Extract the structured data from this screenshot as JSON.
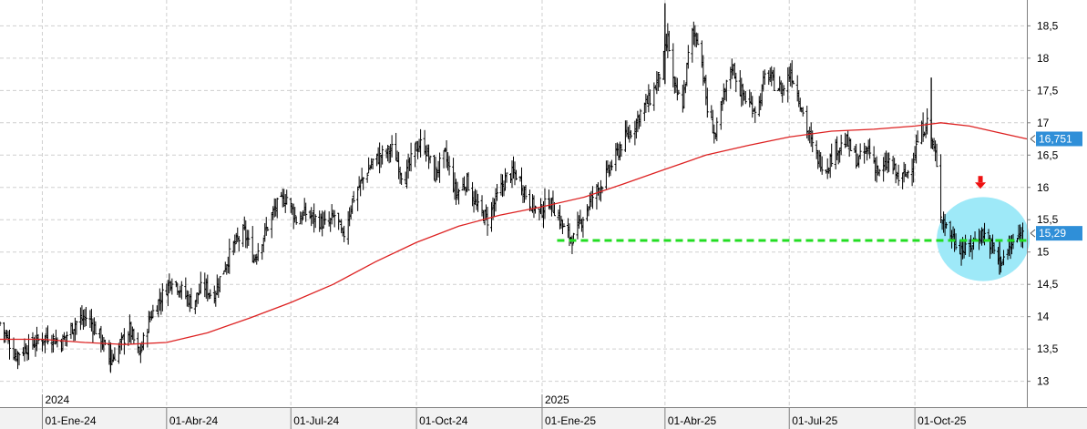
{
  "chart_data": {
    "type": "ohlc",
    "title": "",
    "xlabel": "",
    "ylabel": "",
    "ylim": [
      12.6,
      18.9
    ],
    "yticks": [
      13,
      13.5,
      14,
      14.5,
      15,
      15.5,
      16,
      16.5,
      17,
      17.5,
      18,
      18.5
    ],
    "ytick_labels": [
      "13",
      "13,5",
      "14",
      "14,5",
      "15",
      "15,5",
      "16",
      "16,5",
      "17",
      "17,5",
      "18",
      "18,5"
    ],
    "xlim": [
      "2023-12-01",
      "2025-12-22"
    ],
    "x_ticks": [
      {
        "date": "2024-01-01",
        "label": "01-Ene-24"
      },
      {
        "date": "2024-04-01",
        "label": "01-Abr-24"
      },
      {
        "date": "2024-07-01",
        "label": "01-Jul-24"
      },
      {
        "date": "2024-10-01",
        "label": "01-Oct-24"
      },
      {
        "date": "2025-01-01",
        "label": "01-Ene-25"
      },
      {
        "date": "2025-04-01",
        "label": "01-Abr-25"
      },
      {
        "date": "2025-07-01",
        "label": "01-Jul-25"
      },
      {
        "date": "2025-10-01",
        "label": "01-Oct-25"
      }
    ],
    "year_labels": [
      {
        "date": "2024-01-01",
        "label": "2024"
      },
      {
        "date": "2025-01-01",
        "label": "2025"
      }
    ],
    "grid": true,
    "price_anchor_points": [
      [
        "2023-12-01",
        13.9
      ],
      [
        "2023-12-12",
        13.4
      ],
      [
        "2023-12-22",
        13.55
      ],
      [
        "2024-01-05",
        13.7
      ],
      [
        "2024-01-15",
        13.6
      ],
      [
        "2024-01-25",
        13.9
      ],
      [
        "2024-02-03",
        14.0
      ],
      [
        "2024-02-12",
        13.7
      ],
      [
        "2024-02-20",
        13.3
      ],
      [
        "2024-02-28",
        13.6
      ],
      [
        "2024-03-05",
        13.8
      ],
      [
        "2024-03-12",
        13.4
      ],
      [
        "2024-03-20",
        14.0
      ],
      [
        "2024-03-28",
        14.3
      ],
      [
        "2024-04-05",
        14.6
      ],
      [
        "2024-04-12",
        14.4
      ],
      [
        "2024-04-20",
        14.2
      ],
      [
        "2024-04-28",
        14.5
      ],
      [
        "2024-05-05",
        14.3
      ],
      [
        "2024-05-12",
        14.7
      ],
      [
        "2024-05-20",
        15.1
      ],
      [
        "2024-05-28",
        15.3
      ],
      [
        "2024-06-04",
        14.9
      ],
      [
        "2024-06-12",
        15.3
      ],
      [
        "2024-06-20",
        15.7
      ],
      [
        "2024-06-28",
        15.85
      ],
      [
        "2024-07-05",
        15.5
      ],
      [
        "2024-07-12",
        15.6
      ],
      [
        "2024-07-20",
        15.5
      ],
      [
        "2024-07-28",
        15.4
      ],
      [
        "2024-08-03",
        15.6
      ],
      [
        "2024-08-08",
        15.2
      ],
      [
        "2024-08-15",
        15.8
      ],
      [
        "2024-08-22",
        16.1
      ],
      [
        "2024-08-30",
        16.4
      ],
      [
        "2024-09-06",
        16.5
      ],
      [
        "2024-09-14",
        16.6
      ],
      [
        "2024-09-22",
        16.1
      ],
      [
        "2024-09-30",
        16.6
      ],
      [
        "2024-10-06",
        16.7
      ],
      [
        "2024-10-14",
        16.2
      ],
      [
        "2024-10-22",
        16.5
      ],
      [
        "2024-10-30",
        15.9
      ],
      [
        "2024-11-07",
        16.1
      ],
      [
        "2024-11-14",
        15.7
      ],
      [
        "2024-11-22",
        15.5
      ],
      [
        "2024-11-30",
        15.9
      ],
      [
        "2024-12-07",
        16.2
      ],
      [
        "2024-12-14",
        16.2
      ],
      [
        "2024-12-22",
        15.8
      ],
      [
        "2024-12-30",
        15.6
      ],
      [
        "2025-01-06",
        15.8
      ],
      [
        "2025-01-12",
        15.6
      ],
      [
        "2025-01-18",
        15.3
      ],
      [
        "2025-01-24",
        15.2
      ],
      [
        "2025-02-01",
        15.6
      ],
      [
        "2025-02-08",
        15.9
      ],
      [
        "2025-02-15",
        16.1
      ],
      [
        "2025-02-22",
        16.4
      ],
      [
        "2025-03-01",
        16.7
      ],
      [
        "2025-03-08",
        16.9
      ],
      [
        "2025-03-15",
        17.2
      ],
      [
        "2025-03-22",
        17.4
      ],
      [
        "2025-03-29",
        17.8
      ],
      [
        "2025-04-03",
        18.3
      ],
      [
        "2025-04-08",
        17.5
      ],
      [
        "2025-04-14",
        17.3
      ],
      [
        "2025-04-20",
        18.4
      ],
      [
        "2025-04-26",
        18.3
      ],
      [
        "2025-05-02",
        17.2
      ],
      [
        "2025-05-08",
        16.8
      ],
      [
        "2025-05-14",
        17.4
      ],
      [
        "2025-05-20",
        17.9
      ],
      [
        "2025-05-26",
        17.5
      ],
      [
        "2025-06-01",
        17.3
      ],
      [
        "2025-06-08",
        17.2
      ],
      [
        "2025-06-14",
        17.8
      ],
      [
        "2025-06-20",
        17.6
      ],
      [
        "2025-06-26",
        17.5
      ],
      [
        "2025-07-02",
        17.8
      ],
      [
        "2025-07-08",
        17.4
      ],
      [
        "2025-07-14",
        16.9
      ],
      [
        "2025-07-20",
        16.5
      ],
      [
        "2025-07-28",
        16.3
      ],
      [
        "2025-08-04",
        16.6
      ],
      [
        "2025-08-12",
        16.7
      ],
      [
        "2025-08-20",
        16.4
      ],
      [
        "2025-08-28",
        16.6
      ],
      [
        "2025-09-05",
        16.2
      ],
      [
        "2025-09-12",
        16.4
      ],
      [
        "2025-09-20",
        16.1
      ],
      [
        "2025-09-28",
        16.3
      ],
      [
        "2025-10-04",
        16.8
      ],
      [
        "2025-10-10",
        17.0
      ],
      [
        "2025-10-16",
        16.5
      ],
      [
        "2025-10-20",
        15.6
      ],
      [
        "2025-10-26",
        15.3
      ],
      [
        "2025-11-02",
        15.1
      ],
      [
        "2025-11-08",
        15.0
      ],
      [
        "2025-11-14",
        15.2
      ],
      [
        "2025-11-20",
        15.3
      ],
      [
        "2025-11-26",
        15.1
      ],
      [
        "2025-12-02",
        14.85
      ],
      [
        "2025-12-08",
        15.0
      ],
      [
        "2025-12-14",
        15.2
      ],
      [
        "2025-12-20",
        15.29
      ]
    ],
    "spike_bars": [
      {
        "date": "2025-04-01",
        "high": 18.85,
        "low": 17.6
      },
      {
        "date": "2025-10-13",
        "high": 17.7,
        "low": 16.6
      },
      {
        "date": "2025-12-02",
        "high": 15.2,
        "low": 14.65
      },
      {
        "date": "2024-02-20",
        "high": 13.6,
        "low": 13.15
      }
    ],
    "moving_average": {
      "color": "#dd2222",
      "points": [
        [
          "2023-12-01",
          13.65
        ],
        [
          "2024-01-01",
          13.65
        ],
        [
          "2024-02-01",
          13.6
        ],
        [
          "2024-03-01",
          13.57
        ],
        [
          "2024-04-01",
          13.6
        ],
        [
          "2024-05-01",
          13.75
        ],
        [
          "2024-06-01",
          13.98
        ],
        [
          "2024-07-01",
          14.22
        ],
        [
          "2024-08-01",
          14.5
        ],
        [
          "2024-09-01",
          14.85
        ],
        [
          "2024-10-01",
          15.15
        ],
        [
          "2024-11-01",
          15.4
        ],
        [
          "2024-12-01",
          15.57
        ],
        [
          "2025-01-01",
          15.7
        ],
        [
          "2025-02-01",
          15.85
        ],
        [
          "2025-03-01",
          16.05
        ],
        [
          "2025-04-01",
          16.28
        ],
        [
          "2025-05-01",
          16.5
        ],
        [
          "2025-06-01",
          16.65
        ],
        [
          "2025-07-01",
          16.78
        ],
        [
          "2025-08-01",
          16.87
        ],
        [
          "2025-09-01",
          16.9
        ],
        [
          "2025-10-01",
          16.95
        ],
        [
          "2025-10-20",
          17.0
        ],
        [
          "2025-11-10",
          16.95
        ],
        [
          "2025-12-01",
          16.85
        ],
        [
          "2025-12-22",
          16.751
        ]
      ]
    },
    "support_line": {
      "color": "#22dd22",
      "value": 15.18,
      "start": "2025-01-12",
      "end": "2025-12-22"
    },
    "highlight_ellipse": {
      "color": "#9ee9f8",
      "center_date": "2025-11-20",
      "center_value": 15.2,
      "half_width_days": 34,
      "half_height_value": 0.65
    },
    "arrow_marker": {
      "color": "#ee1111",
      "date": "2025-11-18",
      "value": 16.05,
      "icon": "down-arrow-icon"
    },
    "price_badges": [
      {
        "label": "16,751",
        "value": 16.751,
        "color": "#2f8fd8"
      },
      {
        "label": "15,29",
        "value": 15.29,
        "color": "#2f8fd8"
      }
    ],
    "bar_color": "#000000"
  }
}
